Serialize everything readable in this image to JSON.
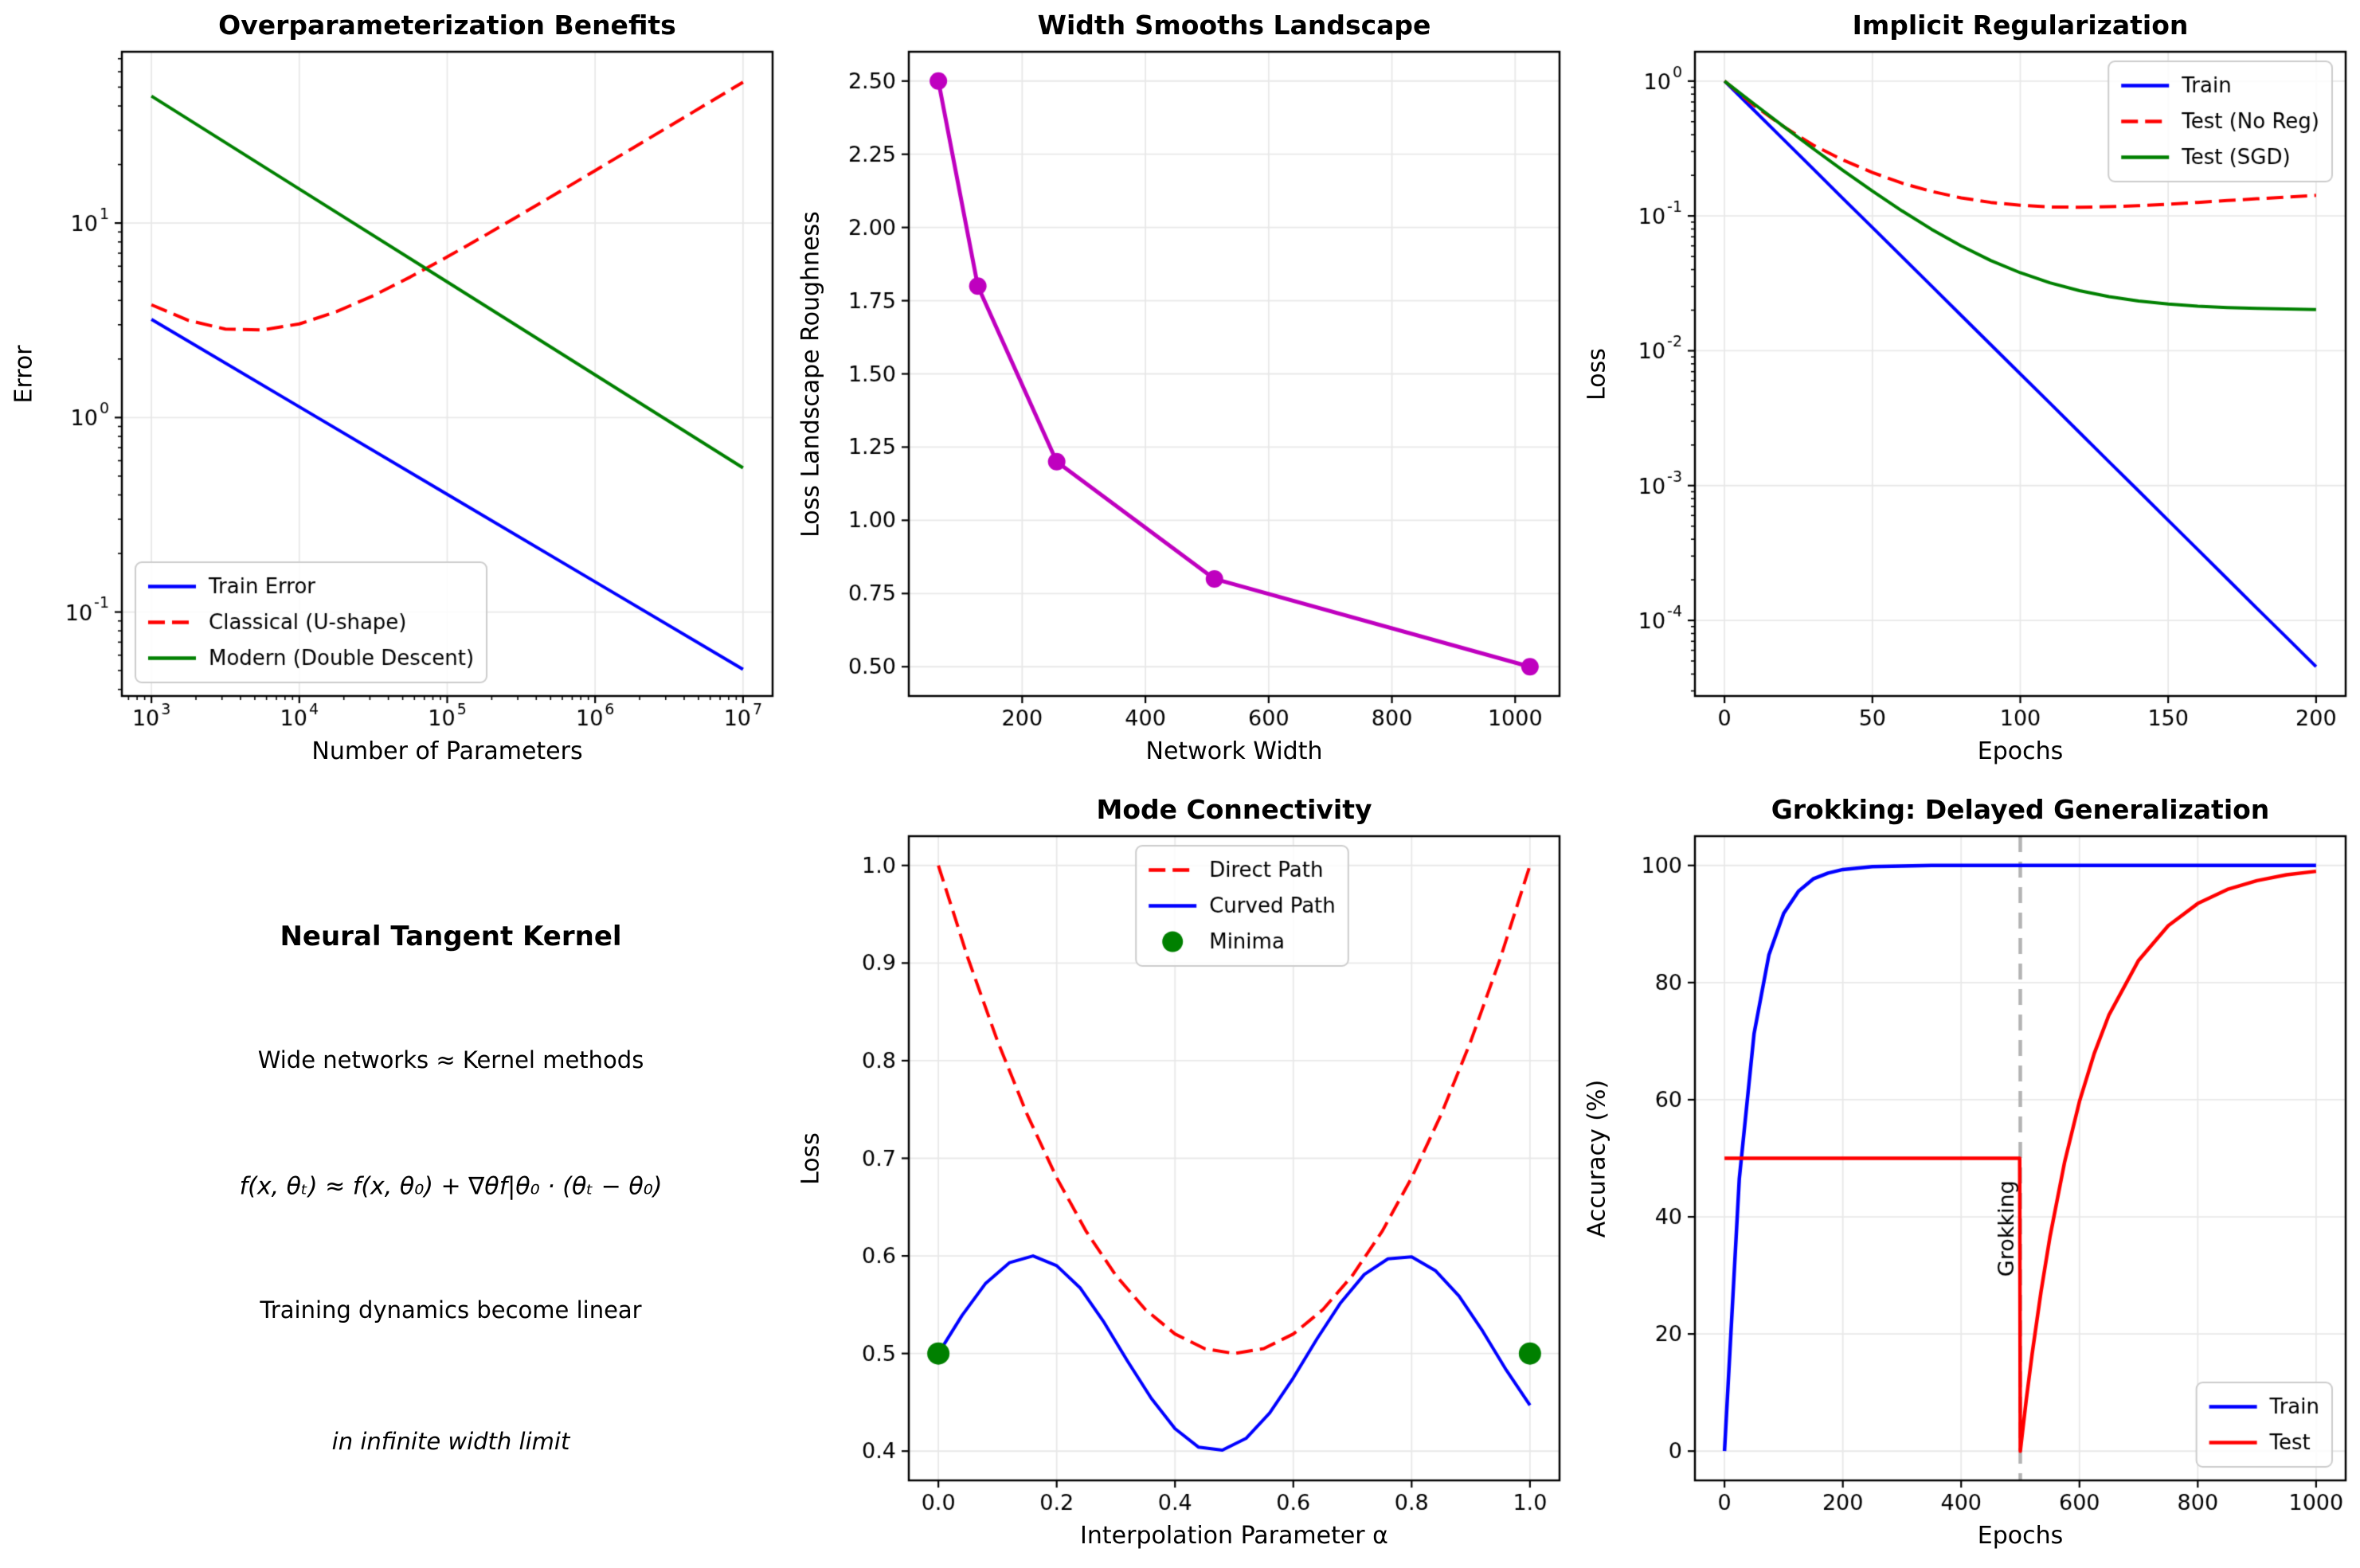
{
  "figure": {
    "background": "#ffffff"
  },
  "colors": {
    "blue": "#0000ff",
    "red": "#ff0000",
    "green": "#008000",
    "magenta": "#bf00bf",
    "grid": "#e8e8e8",
    "spine": "#000000",
    "vline_gray": "#b3b3b3",
    "legend_border": "#cccccc"
  },
  "text_panel": {
    "title": "Neural Tangent Kernel",
    "line1": "Wide networks ≈ Kernel methods",
    "formula": "f(x, θₜ) ≈ f(x, θ₀) + ∇θf|θ₀ · (θₜ − θ₀)",
    "line2": "Training dynamics become linear",
    "line3": "in infinite width limit"
  },
  "chart_data": [
    {
      "type": "line",
      "title": "Overparameterization Benefits",
      "xlabel": "Number of Parameters",
      "ylabel": "Error",
      "xscale": "log",
      "yscale": "log",
      "xlim": [
        631,
        15850000
      ],
      "ylim": [
        0.037,
        76
      ],
      "grid": true,
      "xticks": [
        {
          "v": 1000,
          "l": "10^3"
        },
        {
          "v": 10000,
          "l": "10^4"
        },
        {
          "v": 100000,
          "l": "10^5"
        },
        {
          "v": 1000000,
          "l": "10^6"
        },
        {
          "v": 10000000,
          "l": "10^7"
        }
      ],
      "yticks": [
        {
          "v": 0.1,
          "l": "10^-1"
        },
        {
          "v": 1,
          "l": "10^0"
        },
        {
          "v": 10,
          "l": "10^1"
        }
      ],
      "series": [
        {
          "name": "Train Error",
          "color": "#0000ff",
          "width": 4,
          "dash": [],
          "x": [
            1000,
            10000,
            100000,
            1000000,
            10000000
          ],
          "y": [
            3.2,
            1.135,
            0.403,
            0.143,
            0.0507
          ]
        },
        {
          "name": "Classical (U-shape)",
          "color": "#ff0000",
          "width": 4,
          "dash": [
            21,
            9
          ],
          "x": [
            1000,
            1778,
            3162,
            5623,
            10000,
            17783,
            31623,
            56234,
            100000,
            177828,
            316228,
            562341,
            1000000,
            1778279,
            3162278,
            5623413,
            10000000
          ],
          "y": [
            3.8,
            3.16,
            2.85,
            2.82,
            3.03,
            3.5,
            4.23,
            5.28,
            6.7,
            8.59,
            11.09,
            14.35,
            18.62,
            24.17,
            31.4,
            40.79,
            53.01
          ]
        },
        {
          "name": "Modern (Double Descent)",
          "color": "#008000",
          "width": 4,
          "dash": [],
          "x": [
            1000,
            10000,
            100000,
            1000000,
            10000000
          ],
          "y": [
            45,
            14.97,
            4.98,
            1.657,
            0.551
          ]
        }
      ],
      "legend": {
        "loc": "lower-left",
        "dx": 0,
        "entries": [
          {
            "label": "Train Error",
            "color": "#0000ff",
            "dash": [],
            "marker": "line"
          },
          {
            "label": "Classical (U-shape)",
            "color": "#ff0000",
            "dash": [
              21,
              9
            ],
            "marker": "line"
          },
          {
            "label": "Modern (Double Descent)",
            "color": "#008000",
            "dash": [],
            "marker": "line"
          }
        ]
      }
    },
    {
      "type": "line",
      "title": "Width Smooths Landscape",
      "xlabel": "Network Width",
      "ylabel": "Loss Landscape Roughness",
      "xscale": "linear",
      "yscale": "linear",
      "xlim": [
        16,
        1072
      ],
      "ylim": [
        0.4,
        2.6
      ],
      "grid": true,
      "xticks": [
        {
          "v": 200,
          "l": "200"
        },
        {
          "v": 400,
          "l": "400"
        },
        {
          "v": 600,
          "l": "600"
        },
        {
          "v": 800,
          "l": "800"
        },
        {
          "v": 1000,
          "l": "1000"
        }
      ],
      "yticks": [
        {
          "v": 0.5,
          "l": "0.50"
        },
        {
          "v": 0.75,
          "l": "0.75"
        },
        {
          "v": 1.0,
          "l": "1.00"
        },
        {
          "v": 1.25,
          "l": "1.25"
        },
        {
          "v": 1.5,
          "l": "1.50"
        },
        {
          "v": 1.75,
          "l": "1.75"
        },
        {
          "v": 2.0,
          "l": "2.00"
        },
        {
          "v": 2.25,
          "l": "2.25"
        },
        {
          "v": 2.5,
          "l": "2.50"
        }
      ],
      "series": [
        {
          "name": "roughness",
          "color": "#bf00bf",
          "width": 5,
          "dash": [],
          "markers": true,
          "marker_r": 11,
          "x": [
            64,
            128,
            256,
            512,
            1024
          ],
          "y": [
            2.5,
            1.8,
            1.2,
            0.8,
            0.5
          ]
        }
      ]
    },
    {
      "type": "line",
      "title": "Implicit Regularization",
      "xlabel": "Epochs",
      "ylabel": "Loss",
      "xscale": "linear",
      "yscale": "log",
      "xlim": [
        -10,
        210
      ],
      "ylim": [
        2.75e-05,
        1.65
      ],
      "grid": true,
      "xticks": [
        {
          "v": 0,
          "l": "0"
        },
        {
          "v": 50,
          "l": "50"
        },
        {
          "v": 100,
          "l": "100"
        },
        {
          "v": 150,
          "l": "150"
        },
        {
          "v": 200,
          "l": "200"
        }
      ],
      "yticks": [
        {
          "v": 0.0001,
          "l": "10^-4"
        },
        {
          "v": 0.001,
          "l": "10^-3"
        },
        {
          "v": 0.01,
          "l": "10^-2"
        },
        {
          "v": 0.1,
          "l": "10^-1"
        },
        {
          "v": 1,
          "l": "10^0"
        }
      ],
      "series": [
        {
          "name": "Train",
          "color": "#0000ff",
          "width": 4,
          "dash": [],
          "x": [
            0,
            10,
            20,
            30,
            40,
            50,
            60,
            70,
            80,
            90,
            100,
            110,
            120,
            130,
            140,
            150,
            160,
            170,
            180,
            190,
            200
          ],
          "y": [
            1.0,
            0.607,
            0.368,
            0.223,
            0.135,
            0.0821,
            0.0498,
            0.0302,
            0.0183,
            0.0111,
            0.00674,
            0.00409,
            0.00248,
            0.0015,
            0.000912,
            0.000553,
            0.000335,
            0.000203,
            0.000123,
            7.49e-05,
            4.54e-05
          ]
        },
        {
          "name": "Test (No Reg)",
          "color": "#ff0000",
          "width": 4,
          "dash": [
            21,
            9
          ],
          "x": [
            0,
            10,
            20,
            30,
            40,
            50,
            60,
            70,
            80,
            90,
            100,
            110,
            120,
            130,
            140,
            150,
            160,
            170,
            180,
            190,
            200
          ],
          "y": [
            1.0,
            0.66,
            0.46,
            0.335,
            0.26,
            0.21,
            0.175,
            0.152,
            0.136,
            0.126,
            0.12,
            0.1165,
            0.116,
            0.117,
            0.119,
            0.122,
            0.126,
            0.13,
            0.134,
            0.138,
            0.142
          ]
        },
        {
          "name": "Test (SGD)",
          "color": "#008000",
          "width": 4,
          "dash": [],
          "x": [
            0,
            10,
            20,
            30,
            40,
            50,
            60,
            70,
            80,
            90,
            100,
            110,
            120,
            130,
            140,
            150,
            160,
            170,
            180,
            190,
            200
          ],
          "y": [
            1.0,
            0.677,
            0.46,
            0.315,
            0.218,
            0.153,
            0.109,
            0.0796,
            0.0599,
            0.0467,
            0.0379,
            0.0319,
            0.0279,
            0.0252,
            0.0234,
            0.0222,
            0.0214,
            0.0209,
            0.0206,
            0.0204,
            0.0202
          ]
        }
      ],
      "legend": {
        "loc": "upper-right",
        "dx": 0,
        "entries": [
          {
            "label": "Train",
            "color": "#0000ff",
            "dash": [],
            "marker": "line"
          },
          {
            "label": "Test (No Reg)",
            "color": "#ff0000",
            "dash": [
              21,
              9
            ],
            "marker": "line"
          },
          {
            "label": "Test (SGD)",
            "color": "#008000",
            "dash": [],
            "marker": "line"
          }
        ]
      }
    },
    {
      "type": "line",
      "title": "Mode Connectivity",
      "xlabel": "Interpolation Parameter α",
      "ylabel": "Loss",
      "xscale": "linear",
      "yscale": "linear",
      "xlim": [
        -0.05,
        1.05
      ],
      "ylim": [
        0.37,
        1.03
      ],
      "grid": true,
      "xticks": [
        {
          "v": 0.0,
          "l": "0.0"
        },
        {
          "v": 0.2,
          "l": "0.2"
        },
        {
          "v": 0.4,
          "l": "0.4"
        },
        {
          "v": 0.6,
          "l": "0.6"
        },
        {
          "v": 0.8,
          "l": "0.8"
        },
        {
          "v": 1.0,
          "l": "1.0"
        }
      ],
      "yticks": [
        {
          "v": 0.4,
          "l": "0.4"
        },
        {
          "v": 0.5,
          "l": "0.5"
        },
        {
          "v": 0.6,
          "l": "0.6"
        },
        {
          "v": 0.7,
          "l": "0.7"
        },
        {
          "v": 0.8,
          "l": "0.8"
        },
        {
          "v": 0.9,
          "l": "0.9"
        },
        {
          "v": 1.0,
          "l": "1.0"
        }
      ],
      "series": [
        {
          "name": "Direct Path",
          "color": "#ff0000",
          "width": 4,
          "dash": [
            21,
            9
          ],
          "x": [
            0,
            0.05,
            0.1,
            0.15,
            0.2,
            0.25,
            0.3,
            0.35,
            0.4,
            0.45,
            0.5,
            0.55,
            0.6,
            0.65,
            0.7,
            0.75,
            0.8,
            0.85,
            0.9,
            0.95,
            1.0
          ],
          "y": [
            1.0,
            0.905,
            0.82,
            0.745,
            0.68,
            0.625,
            0.58,
            0.545,
            0.52,
            0.505,
            0.5,
            0.505,
            0.52,
            0.545,
            0.58,
            0.625,
            0.68,
            0.745,
            0.82,
            0.905,
            1.0
          ]
        },
        {
          "name": "Curved Path",
          "color": "#0000ff",
          "width": 4,
          "dash": [],
          "x": [
            0,
            0.04,
            0.08,
            0.12,
            0.16,
            0.2,
            0.24,
            0.28,
            0.32,
            0.36,
            0.4,
            0.44,
            0.48,
            0.52,
            0.56,
            0.6,
            0.64,
            0.68,
            0.72,
            0.76,
            0.8,
            0.84,
            0.88,
            0.92,
            0.96,
            1.0
          ],
          "y": [
            0.5,
            0.539,
            0.572,
            0.593,
            0.6,
            0.59,
            0.567,
            0.532,
            0.492,
            0.454,
            0.423,
            0.404,
            0.401,
            0.413,
            0.439,
            0.475,
            0.515,
            0.552,
            0.581,
            0.597,
            0.599,
            0.585,
            0.559,
            0.523,
            0.483,
            0.447
          ]
        },
        {
          "name": "Minima",
          "color": "#008000",
          "type": "scatter",
          "marker_r": 14,
          "x": [
            0,
            1.0
          ],
          "y": [
            0.5,
            0.5
          ]
        }
      ],
      "legend": {
        "loc": "upper-center",
        "dx": 10,
        "entries": [
          {
            "label": "Direct Path",
            "color": "#ff0000",
            "dash": [
              21,
              9
            ],
            "marker": "line"
          },
          {
            "label": "Curved Path",
            "color": "#0000ff",
            "dash": [],
            "marker": "line"
          },
          {
            "label": "Minima",
            "color": "#008000",
            "marker": "circle"
          }
        ]
      }
    },
    {
      "type": "line",
      "title": "Grokking: Delayed Generalization",
      "xlabel": "Epochs",
      "ylabel": "Accuracy (%)",
      "xscale": "linear",
      "yscale": "linear",
      "xlim": [
        -50,
        1050
      ],
      "ylim": [
        -5,
        105
      ],
      "grid": true,
      "xticks": [
        {
          "v": 0,
          "l": "0"
        },
        {
          "v": 200,
          "l": "200"
        },
        {
          "v": 400,
          "l": "400"
        },
        {
          "v": 600,
          "l": "600"
        },
        {
          "v": 800,
          "l": "800"
        },
        {
          "v": 1000,
          "l": "1000"
        }
      ],
      "yticks": [
        {
          "v": 0,
          "l": "0"
        },
        {
          "v": 20,
          "l": "20"
        },
        {
          "v": 40,
          "l": "40"
        },
        {
          "v": 60,
          "l": "60"
        },
        {
          "v": 80,
          "l": "80"
        },
        {
          "v": 100,
          "l": "100"
        }
      ],
      "vline": {
        "x": 500,
        "color": "#b3b3b3",
        "dash": [
          20,
          12
        ],
        "width": 4.5,
        "label": "Grokking",
        "label_y": 38
      },
      "series": [
        {
          "name": "Train",
          "color": "#0000ff",
          "width": 4.5,
          "dash": [],
          "x": [
            0,
            25,
            50,
            75,
            100,
            125,
            150,
            175,
            200,
            250,
            300,
            350,
            400,
            500,
            600,
            700,
            800,
            900,
            1000
          ],
          "y": [
            0,
            46.5,
            71.3,
            84.7,
            91.8,
            95.6,
            97.7,
            98.7,
            99.3,
            99.8,
            99.9,
            100,
            100,
            100,
            100,
            100,
            100,
            100,
            100
          ]
        },
        {
          "name": "Test",
          "color": "#ff0000",
          "width": 4.5,
          "dash": [],
          "x": [
            0,
            100,
            200,
            300,
            400,
            499,
            500,
            510,
            520,
            535,
            550,
            575,
            600,
            625,
            650,
            700,
            750,
            800,
            850,
            900,
            950,
            1000
          ],
          "y": [
            50,
            50,
            50,
            50,
            50,
            50,
            0,
            8.7,
            16.6,
            27.2,
            36.5,
            49.4,
            59.7,
            67.9,
            74.5,
            83.8,
            89.7,
            93.5,
            95.9,
            97.4,
            98.4,
            99.0
          ]
        }
      ],
      "legend": {
        "loc": "lower-right",
        "dx": 0,
        "entries": [
          {
            "label": "Train",
            "color": "#0000ff",
            "dash": [],
            "marker": "line"
          },
          {
            "label": "Test",
            "color": "#ff0000",
            "dash": [],
            "marker": "line"
          }
        ]
      }
    }
  ]
}
